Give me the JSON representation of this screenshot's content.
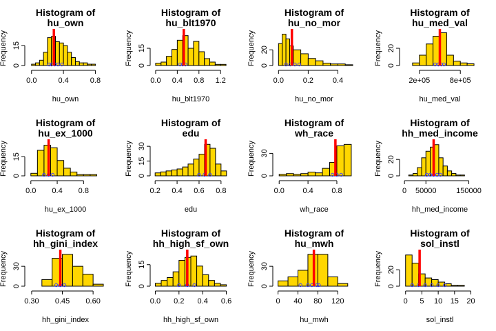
{
  "colors": {
    "bar_fill": "#FFD700",
    "bar_stroke": "#000000",
    "mean_line": "#FF0000",
    "rug": "#4040FF"
  },
  "chart_data": [
    {
      "type": "bar",
      "title_line1": "Histogram of",
      "title_line2": "hu_own",
      "xlabel": "hu_own",
      "ylabel": "Frequency",
      "bin_edges": [
        0.0,
        0.05,
        0.1,
        0.15,
        0.2,
        0.25,
        0.3,
        0.35,
        0.4,
        0.45,
        0.5,
        0.55,
        0.6,
        0.65,
        0.7,
        0.75,
        0.8,
        0.85,
        0.9
      ],
      "counts": [
        1,
        2,
        4,
        10,
        21,
        22,
        18,
        17,
        15,
        10,
        6,
        3,
        2,
        2,
        1,
        1,
        0,
        0
      ],
      "xlim": [
        -0.05,
        0.9
      ],
      "xticks": [
        0.0,
        0.4,
        0.8
      ],
      "xtick_labels": [
        "0.0",
        "0.4",
        "0.8"
      ],
      "yticks": [
        0,
        15
      ],
      "ytick_labels": [
        "0",
        "15"
      ],
      "ymax": 26,
      "mean": 0.28,
      "rug": [
        0.22,
        0.25,
        0.29,
        0.33,
        0.38
      ]
    },
    {
      "type": "bar",
      "title_line1": "Histogram of",
      "title_line2": "hu_blt1970",
      "xlabel": "hu_blt1970",
      "ylabel": "Frequency",
      "bin_edges": [
        0.0,
        0.1,
        0.2,
        0.3,
        0.4,
        0.5,
        0.6,
        0.7,
        0.8,
        0.9,
        1.0,
        1.1,
        1.2,
        1.3
      ],
      "counts": [
        2,
        3,
        8,
        14,
        22,
        26,
        15,
        21,
        12,
        6,
        3,
        1,
        1
      ],
      "xlim": [
        -0.05,
        1.35
      ],
      "xticks": [
        0.0,
        0.4,
        0.8,
        1.2
      ],
      "xtick_labels": [
        "0.0",
        "0.4",
        "0.8",
        "1.2"
      ],
      "yticks": [
        0,
        15
      ],
      "ytick_labels": [
        "0",
        "15"
      ],
      "ymax": 30,
      "mean": 0.52,
      "rug": [
        0.45,
        0.5,
        0.55
      ]
    },
    {
      "type": "bar",
      "title_line1": "Histogram of",
      "title_line2": "hu_no_mor",
      "xlabel": "hu_no_mor",
      "ylabel": "Frequency",
      "bin_edges": [
        0.0,
        0.025,
        0.05,
        0.075,
        0.1,
        0.15,
        0.2,
        0.25,
        0.3,
        0.35,
        0.4,
        0.45,
        0.5
      ],
      "counts": [
        28,
        40,
        34,
        25,
        20,
        15,
        9,
        6,
        3,
        2,
        2,
        1
      ],
      "xlim": [
        -0.02,
        0.5
      ],
      "xticks": [
        0.0,
        0.2,
        0.4
      ],
      "xtick_labels": [
        "0.0",
        "0.2",
        "0.4"
      ],
      "yticks": [
        0,
        20
      ],
      "ytick_labels": [
        "0",
        "20"
      ],
      "ymax": 44,
      "mean": 0.09,
      "rug": [
        0.05,
        0.08,
        0.11,
        0.14
      ]
    },
    {
      "type": "bar",
      "title_line1": "Histogram of",
      "title_line2": "hu_med_val",
      "xlabel": "hu_med_val",
      "ylabel": "Frequency",
      "bin_edges": [
        0,
        100000,
        200000,
        300000,
        400000,
        500000,
        600000,
        700000,
        800000,
        900000,
        1000000
      ],
      "counts": [
        0,
        3,
        12,
        25,
        34,
        38,
        12,
        5,
        3,
        2
      ],
      "xlim": [
        -50000,
        1050000
      ],
      "xticks": [
        200000,
        800000
      ],
      "xtick_labels": [
        "2e+05",
        "8e+05"
      ],
      "yticks": [
        0,
        20
      ],
      "ytick_labels": [
        "0",
        "20"
      ],
      "ymax": 40,
      "mean": 500000,
      "rug": [
        430000,
        480000,
        520000,
        560000
      ]
    },
    {
      "type": "bar",
      "title_line1": "Histogram of",
      "title_line2": "hu_ex_1000",
      "xlabel": "hu_ex_1000",
      "ylabel": "Frequency",
      "bin_edges": [
        0.0,
        0.1,
        0.2,
        0.3,
        0.4,
        0.5,
        0.6,
        0.7,
        0.8,
        0.9,
        1.0,
        1.1
      ],
      "counts": [
        2,
        20,
        24,
        22,
        12,
        6,
        3,
        1,
        1,
        1,
        0
      ],
      "xlim": [
        -0.05,
        1.1
      ],
      "xticks": [
        0.0,
        0.4,
        0.8
      ],
      "xtick_labels": [
        "0.0",
        "0.4",
        "0.8"
      ],
      "yticks": [
        0,
        15
      ],
      "ytick_labels": [
        "0",
        "15"
      ],
      "ymax": 27,
      "mean": 0.27,
      "rug": [
        0.2,
        0.27,
        0.33
      ]
    },
    {
      "type": "bar",
      "title_line1": "Histogram of",
      "title_line2": "edu",
      "xlabel": "edu",
      "ylabel": "Frequency",
      "bin_edges": [
        0.2,
        0.25,
        0.3,
        0.35,
        0.4,
        0.45,
        0.5,
        0.55,
        0.6,
        0.65,
        0.7,
        0.75,
        0.8,
        0.85
      ],
      "counts": [
        3,
        4,
        5,
        6,
        7,
        9,
        12,
        17,
        22,
        32,
        28,
        12,
        5
      ],
      "xlim": [
        0.18,
        0.87
      ],
      "xticks": [
        0.2,
        0.4,
        0.6,
        0.8
      ],
      "xtick_labels": [
        "0.2",
        "0.4",
        "0.6",
        "0.8"
      ],
      "yticks": [
        0,
        15,
        30
      ],
      "ytick_labels": [
        "0",
        "15",
        "30"
      ],
      "ymax": 35,
      "mean": 0.66,
      "rug": [
        0.6,
        0.65,
        0.7
      ]
    },
    {
      "type": "bar",
      "title_line1": "Histogram of",
      "title_line2": "wh_race",
      "xlabel": "wh_race",
      "ylabel": "Frequency",
      "bin_edges": [
        0.0,
        0.1,
        0.2,
        0.3,
        0.4,
        0.5,
        0.6,
        0.7,
        0.8,
        0.9,
        1.0
      ],
      "counts": [
        2,
        3,
        2,
        3,
        5,
        4,
        10,
        18,
        40,
        42
      ],
      "xlim": [
        -0.05,
        1.02
      ],
      "xticks": [
        0.0,
        0.4,
        0.8
      ],
      "xtick_labels": [
        "0.0",
        "0.4",
        "0.8"
      ],
      "yticks": [
        0,
        30
      ],
      "ytick_labels": [
        "0",
        "30"
      ],
      "ymax": 46,
      "mean": 0.78,
      "rug": [
        0.74,
        0.8,
        0.86
      ]
    },
    {
      "type": "bar",
      "title_line1": "Histogram of",
      "title_line2": "hh_med_income",
      "xlabel": "hh_med_income",
      "ylabel": "Frequency",
      "bin_edges": [
        10000,
        20000,
        30000,
        40000,
        50000,
        60000,
        70000,
        80000,
        90000,
        100000,
        110000,
        120000,
        130000,
        140000
      ],
      "counts": [
        1,
        3,
        10,
        22,
        30,
        35,
        38,
        22,
        12,
        6,
        3,
        1,
        1
      ],
      "xlim": [
        -5000,
        170000
      ],
      "xticks": [
        0,
        50000,
        150000
      ],
      "xtick_labels": [
        "0",
        "50000",
        "150000"
      ],
      "yticks": [
        0,
        20
      ],
      "ytick_labels": [
        "0",
        "20"
      ],
      "ymax": 42,
      "mean": 68000,
      "rug": [
        52000,
        60000,
        68000,
        76000,
        84000
      ]
    },
    {
      "type": "bar",
      "title_line1": "Histogram of",
      "title_line2": "hh_gini_index",
      "xlabel": "hh_gini_index",
      "ylabel": "Frequency",
      "bin_edges": [
        0.35,
        0.4,
        0.45,
        0.5,
        0.55,
        0.6,
        0.65
      ],
      "counts": [
        10,
        42,
        48,
        30,
        18,
        3
      ],
      "xlim": [
        0.28,
        0.65
      ],
      "xticks": [
        0.3,
        0.45,
        0.6
      ],
      "xtick_labels": [
        "0.30",
        "0.45",
        "0.60"
      ],
      "yticks": [
        0,
        30
      ],
      "ytick_labels": [
        "0",
        "30"
      ],
      "ymax": 52,
      "mean": 0.44,
      "rug": [
        0.42,
        0.44,
        0.46
      ]
    },
    {
      "type": "bar",
      "title_line1": "Histogram of",
      "title_line2": "hh_high_sf_own",
      "xlabel": "hh_high_sf_own",
      "ylabel": "Frequency",
      "bin_edges": [
        0.0,
        0.05,
        0.1,
        0.15,
        0.2,
        0.25,
        0.3,
        0.35,
        0.4,
        0.45,
        0.5,
        0.55,
        0.6
      ],
      "counts": [
        2,
        4,
        6,
        10,
        18,
        20,
        21,
        14,
        8,
        4,
        2,
        1
      ],
      "xlim": [
        -0.02,
        0.62
      ],
      "xticks": [
        0.0,
        0.2,
        0.4,
        0.6
      ],
      "xtick_labels": [
        "0.0",
        "0.2",
        "0.4",
        "0.6"
      ],
      "yticks": [
        0,
        15
      ],
      "ytick_labels": [
        "0",
        "15"
      ],
      "ymax": 24,
      "mean": 0.27,
      "rug": [
        0.2,
        0.27,
        0.33
      ]
    },
    {
      "type": "bar",
      "title_line1": "Histogram of",
      "title_line2": "hu_mwh",
      "xlabel": "hu_mwh",
      "ylabel": "Frequency",
      "bin_edges": [
        0,
        20,
        40,
        60,
        80,
        100,
        120,
        140
      ],
      "counts": [
        8,
        14,
        24,
        48,
        48,
        14,
        4
      ],
      "xlim": [
        -5,
        150
      ],
      "xticks": [
        0,
        40,
        80,
        120
      ],
      "xtick_labels": [
        "0",
        "40",
        "80",
        "120"
      ],
      "yticks": [
        0,
        30
      ],
      "ytick_labels": [
        "0",
        "30"
      ],
      "ymax": 52,
      "mean": 72,
      "rug": [
        45,
        60,
        68,
        78,
        82
      ]
    },
    {
      "type": "bar",
      "title_line1": "Histogram of",
      "title_line2": "sol_instl",
      "xlabel": "sol_instl",
      "ylabel": "Frequency",
      "bin_edges": [
        0,
        2,
        4,
        6,
        8,
        10,
        12,
        14,
        16,
        18,
        20
      ],
      "counts": [
        38,
        28,
        15,
        10,
        8,
        5,
        3,
        1,
        1,
        0
      ],
      "xlim": [
        -1,
        22
      ],
      "xticks": [
        0,
        5,
        10,
        15,
        20
      ],
      "xtick_labels": [
        "0",
        "5",
        "10",
        "15",
        "20"
      ],
      "yticks": [
        0,
        20
      ],
      "ytick_labels": [
        "0",
        "20"
      ],
      "ymax": 42,
      "mean": 4.3,
      "rug": [
        2,
        4,
        6,
        8,
        10,
        12
      ]
    }
  ]
}
